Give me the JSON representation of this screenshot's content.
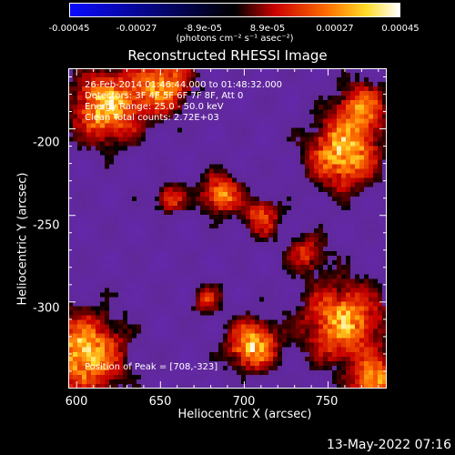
{
  "colorbar": {
    "ticks": [
      "-0.00045",
      "-0.00027",
      "-8.9e-05",
      "8.9e-05",
      "0.00027",
      "0.00045"
    ],
    "units": "(photons cm⁻² s⁻¹ asec⁻²)"
  },
  "info": {
    "time": "26-Feb-2014 01:46:44.000 to 01:48:32.000",
    "detectors": "Detectors: 3F 4F 5F 6F 7F 8F, Att 0",
    "energy": "Energy Range: 25.0 - 50.0 keV",
    "method": "Clean    Total counts: 2.72E+03",
    "peak": "Position of Peak = [708,-323]"
  },
  "footer": {
    "timestamp": "13-May-2022 07:16"
  },
  "chart_data": {
    "type": "heatmap",
    "title": "Reconstructed RHESSI Image",
    "xlabel": "Heliocentric X (arcsec)",
    "ylabel": "Heliocentric Y (arcsec)",
    "xlim": [
      595,
      785
    ],
    "ylim": [
      -350,
      -165
    ],
    "x_ticks": [
      "600",
      "650",
      "700",
      "750"
    ],
    "y_ticks": [
      "-200",
      "-250",
      "-300"
    ],
    "colorbar_range": [
      -0.00045,
      0.00045
    ],
    "grid": false
  }
}
